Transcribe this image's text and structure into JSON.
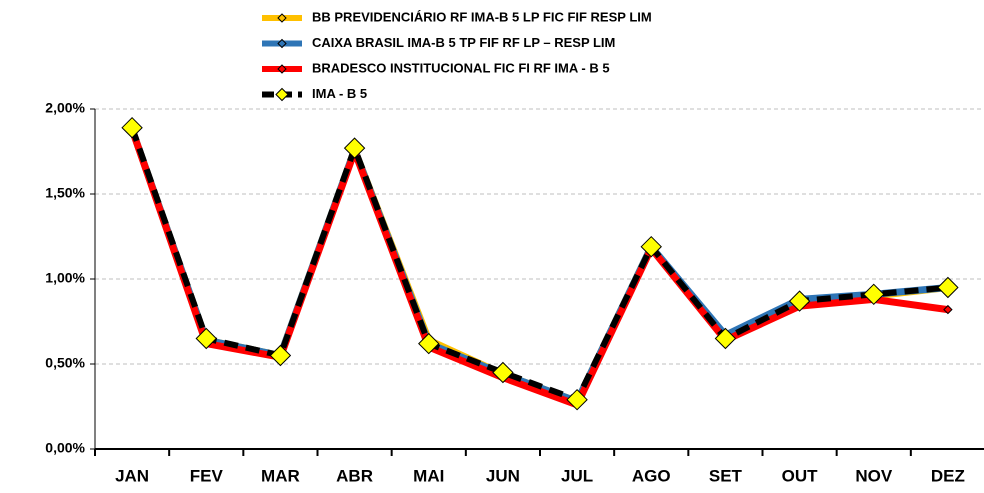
{
  "chart_data": {
    "type": "line",
    "categories": [
      "JAN",
      "FEV",
      "MAR",
      "ABR",
      "MAI",
      "JUN",
      "JUL",
      "AGO",
      "SET",
      "OUT",
      "NOV",
      "DEZ"
    ],
    "series": [
      {
        "name": "BB PREVIDENCIÁRIO RF IMA-B 5 LP FIC FIF RESP LIM",
        "color": "#ffc000",
        "values": [
          1.88,
          0.64,
          0.55,
          1.76,
          0.64,
          0.44,
          0.28,
          1.19,
          0.65,
          0.87,
          0.9,
          0.95
        ]
      },
      {
        "name": "CAIXA BRASIL IMA-B 5 TP FIF RF LP – RESP LIM",
        "color": "#2e75b6",
        "values": [
          1.88,
          0.64,
          0.55,
          1.76,
          0.62,
          0.44,
          0.28,
          1.19,
          0.67,
          0.88,
          0.91,
          0.95
        ]
      },
      {
        "name": "BRADESCO INSTITUCIONAL FIC FI RF IMA - B 5",
        "color": "#ff0000",
        "values": [
          1.88,
          0.62,
          0.54,
          1.75,
          0.6,
          0.42,
          0.26,
          1.18,
          0.64,
          0.84,
          0.88,
          0.82
        ]
      },
      {
        "name": "IMA - B 5",
        "color": "#000000",
        "values": [
          1.89,
          0.65,
          0.55,
          1.77,
          0.62,
          0.45,
          0.29,
          1.19,
          0.65,
          0.87,
          0.91,
          0.95
        ]
      }
    ],
    "ylim": [
      0,
      2
    ],
    "yticks": [
      {
        "value": 0,
        "label": "0,00%"
      },
      {
        "value": 0.5,
        "label": "0,50%"
      },
      {
        "value": 1,
        "label": "1,00%"
      },
      {
        "value": 1.5,
        "label": "1,50%"
      },
      {
        "value": 2,
        "label": "2,00%"
      }
    ],
    "grid": true
  }
}
